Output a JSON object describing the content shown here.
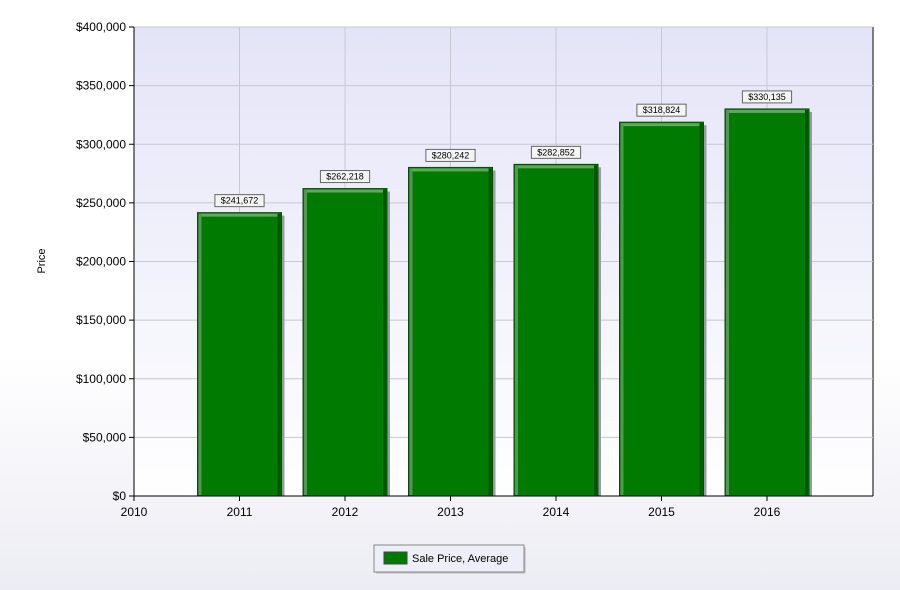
{
  "chart_data": {
    "type": "bar",
    "title": "",
    "xlabel": "",
    "ylabel": "Price",
    "x_ticks": [
      "2010",
      "2011",
      "2012",
      "2013",
      "2014",
      "2015",
      "2016"
    ],
    "categories": [
      "2011",
      "2012",
      "2013",
      "2014",
      "2015",
      "2016"
    ],
    "series": [
      {
        "name": "Sale Price, Average",
        "color": "#007a00",
        "values": [
          241672,
          262218,
          280242,
          282852,
          318824,
          330135
        ],
        "data_labels": [
          "$241,672",
          "$262,218",
          "$280,242",
          "$282,852",
          "$318,824",
          "$330,135"
        ]
      }
    ],
    "ylim": [
      0,
      400000
    ],
    "y_ticks": [
      0,
      50000,
      100000,
      150000,
      200000,
      250000,
      300000,
      350000,
      400000
    ],
    "y_tick_labels": [
      "$0",
      "$50,000",
      "$100,000",
      "$150,000",
      "$200,000",
      "$250,000",
      "$300,000",
      "$350,000",
      "$400,000"
    ],
    "grid": true,
    "legend_position": "bottom-center",
    "plot_background": [
      "#e4e4f8",
      "#ffffff"
    ]
  }
}
